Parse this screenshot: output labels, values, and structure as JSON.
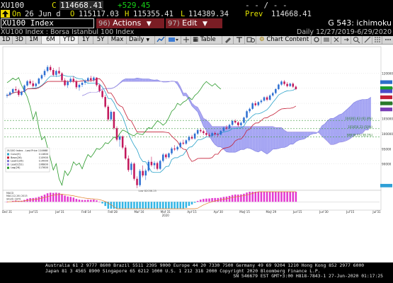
{
  "quote": {
    "ticker": "XU100",
    "last_prefix": "C",
    "last": "114668.41",
    "change": "+529.45",
    "change_color": "#17d117",
    "dashes": "- - / - -",
    "on_label": "On",
    "date": "26 Jun d",
    "open_prefix": "O",
    "open": "115117.03",
    "high_prefix": "H",
    "high": "115355.41",
    "low_prefix": "L",
    "low": "114389.34",
    "prev_label": "Prev",
    "prev": "114668.41"
  },
  "function_bar": {
    "ticker_field": "XU100 Index",
    "actions": {
      "num": "96)",
      "label": "Actions"
    },
    "edit": {
      "num": "97)",
      "label": "Edit"
    },
    "title": "G 543: ichimoku"
  },
  "subtitle": {
    "left": "XU100 Index : Borsa Istanbul 100 Index",
    "period_label": "Daily",
    "range": "12/27/2019-6/29/2020"
  },
  "toolbar": {
    "buttons": [
      "1D",
      "3D",
      "1M",
      "6M",
      "YTD",
      "1Y",
      "5Y",
      "Max",
      "Daily"
    ],
    "active": "6M",
    "table": "Table",
    "chart_content": "Chart Content"
  },
  "chart_data": {
    "type": "line",
    "date_labels": [
      "Dec 31",
      "Jan 15",
      "Jan 31",
      "Feb 14",
      "Feb 28",
      "Mar 16",
      "Mar 31",
      "Apr 15",
      "Apr 30",
      "May 15",
      "May 29",
      "Jun 15",
      "Jun 30",
      "Jul 15",
      "Jul 31"
    ],
    "year_label": "2020",
    "y_tick_labels": [
      "120000",
      "115000",
      "110000",
      "105000",
      "100000",
      "95000",
      "90000"
    ],
    "price_ylim": [
      82000,
      128000
    ],
    "macd_ylim": [
      -1500,
      2200
    ],
    "price_tags": [
      {
        "value": 117000,
        "color": "#2c6ec9"
      },
      {
        "value": 115000,
        "color": "#1a9d2a"
      },
      {
        "value": 114000,
        "color": "#4b4bc8"
      },
      {
        "value": 112000,
        "color": "#c41f36"
      },
      {
        "value": 110000,
        "color": "#2a7a2a"
      },
      {
        "value": 108000,
        "color": "#7a3fb5"
      }
    ],
    "fib_labels": [
      "104361.63 (61.8%)",
      "101650.23 (50%)",
      "98938.53 (38.2%)"
    ],
    "legend": {
      "header": "XU100 Index - Last Price 114668",
      "items": [
        "Conv(9)",
        "Base(26)",
        "Lead1(26)",
        "Lead2(52)",
        "Lag(26)"
      ],
      "values": [
        "111800",
        "110900",
        "114000",
        "106800",
        "117600"
      ],
      "colors": [
        "#2aa2c9",
        "#c41f36",
        "#7a7ad0",
        "#9c8be0",
        "#2a9a2a"
      ]
    },
    "macd_legend": [
      "MACD",
      "MAC(12,26) 2015",
      "SIG(9) 1879"
    ],
    "min_label": "Low 82036.25",
    "candles": [
      [
        112500,
        113300,
        111800,
        112800
      ],
      [
        112800,
        114000,
        112400,
        113600
      ],
      [
        113600,
        115000,
        113300,
        114700
      ],
      [
        114700,
        115600,
        113900,
        114300
      ],
      [
        114300,
        114800,
        112200,
        112800
      ],
      [
        112800,
        114100,
        112400,
        113800
      ],
      [
        113800,
        116200,
        113500,
        115900
      ],
      [
        115900,
        117700,
        115500,
        117300
      ],
      [
        117300,
        117900,
        116100,
        116600
      ],
      [
        116600,
        117500,
        115300,
        115700
      ],
      [
        115700,
        116900,
        115200,
        116500
      ],
      [
        116500,
        118500,
        116200,
        118200
      ],
      [
        118200,
        119700,
        117700,
        119300
      ],
      [
        119300,
        121300,
        118700,
        120700
      ],
      [
        120700,
        122600,
        120200,
        122000
      ],
      [
        122000,
        122700,
        120500,
        121000
      ],
      [
        121000,
        121700,
        118900,
        119400
      ],
      [
        119400,
        121100,
        118700,
        120700
      ],
      [
        120700,
        122000,
        119500,
        119900
      ],
      [
        119900,
        120300,
        117100,
        117600
      ],
      [
        117600,
        118300,
        115600,
        116000
      ],
      [
        116000,
        117600,
        115100,
        117100
      ],
      [
        117100,
        118600,
        116700,
        118100
      ],
      [
        118100,
        119000,
        116700,
        117200
      ],
      [
        117200,
        117800,
        114700,
        115300
      ],
      [
        115300,
        116600,
        114200,
        116100
      ],
      [
        116100,
        117300,
        115400,
        116800
      ],
      [
        116800,
        117900,
        116100,
        117500
      ],
      [
        117500,
        118700,
        116900,
        118300
      ],
      [
        118300,
        119100,
        117100,
        117700
      ],
      [
        117700,
        118900,
        117100,
        118500
      ],
      [
        118500,
        118600,
        115500,
        116000
      ],
      [
        116000,
        116400,
        113600,
        114100
      ],
      [
        114100,
        114600,
        111600,
        112100
      ],
      [
        112100,
        112800,
        108400,
        108900
      ],
      [
        108900,
        109500,
        104100,
        104700
      ],
      [
        104700,
        107800,
        104100,
        107200
      ],
      [
        107200,
        107400,
        101300,
        101800
      ],
      [
        101800,
        102400,
        97500,
        98000
      ],
      [
        98000,
        99600,
        95700,
        99100
      ],
      [
        99100,
        99400,
        94800,
        95400
      ],
      [
        95400,
        96200,
        91300,
        91800
      ],
      [
        91800,
        92800,
        87400,
        88000
      ],
      [
        88000,
        90700,
        86400,
        90100
      ],
      [
        90100,
        90500,
        84500,
        85100
      ],
      [
        85100,
        85900,
        82000,
        83000
      ],
      [
        83000,
        88300,
        82500,
        87700
      ],
      [
        87700,
        89500,
        85600,
        86200
      ],
      [
        86200,
        88400,
        84700,
        87800
      ],
      [
        87800,
        91300,
        87300,
        90700
      ],
      [
        90700,
        92400,
        89100,
        89600
      ],
      [
        89600,
        91000,
        88300,
        90300
      ],
      [
        90300,
        90800,
        87900,
        88400
      ],
      [
        88400,
        91400,
        88000,
        91000
      ],
      [
        91000,
        93600,
        90500,
        93100
      ],
      [
        93100,
        93500,
        91600,
        92200
      ],
      [
        92200,
        93800,
        91800,
        93500
      ],
      [
        93500,
        95600,
        93000,
        95100
      ],
      [
        95100,
        96200,
        94300,
        94800
      ],
      [
        94800,
        96000,
        94300,
        95600
      ],
      [
        95600,
        97400,
        95100,
        97000
      ],
      [
        97000,
        98000,
        96200,
        96700
      ],
      [
        96700,
        98200,
        96300,
        97800
      ],
      [
        97800,
        99400,
        97300,
        98900
      ],
      [
        98900,
        99600,
        98000,
        98400
      ],
      [
        98400,
        100400,
        98000,
        100000
      ],
      [
        100000,
        101600,
        99500,
        101200
      ],
      [
        101200,
        101700,
        100300,
        100800
      ],
      [
        100800,
        101300,
        99600,
        100200
      ],
      [
        100200,
        100800,
        99100,
        99600
      ],
      [
        99600,
        100300,
        98700,
        99300
      ],
      [
        99300,
        100600,
        98800,
        100200
      ],
      [
        100200,
        100700,
        99300,
        99800
      ],
      [
        99800,
        100300,
        99000,
        99700
      ],
      [
        99700,
        101200,
        99400,
        100900
      ],
      [
        100900,
        102400,
        100500,
        102000
      ],
      [
        102000,
        102800,
        101300,
        101700
      ],
      [
        101700,
        103300,
        101400,
        102900
      ],
      [
        102900,
        104600,
        102600,
        104200
      ],
      [
        104200,
        104700,
        103300,
        103700
      ],
      [
        103700,
        104100,
        102300,
        102800
      ],
      [
        102800,
        104000,
        102400,
        103600
      ],
      [
        103600,
        105600,
        103300,
        105300
      ],
      [
        105300,
        107800,
        105000,
        107400
      ],
      [
        107400,
        108600,
        106800,
        108200
      ],
      [
        108200,
        110400,
        107900,
        110000
      ],
      [
        110000,
        110800,
        109000,
        109400
      ],
      [
        109400,
        110700,
        109000,
        110400
      ],
      [
        110400,
        111400,
        109900,
        110900
      ],
      [
        110900,
        112300,
        110600,
        112000
      ],
      [
        112000,
        112500,
        110700,
        111200
      ],
      [
        111200,
        113000,
        110900,
        112600
      ],
      [
        112600,
        113800,
        112200,
        113400
      ],
      [
        113400,
        115000,
        113000,
        114700
      ],
      [
        114700,
        116500,
        114400,
        116200
      ],
      [
        116200,
        117600,
        115800,
        117200
      ],
      [
        117200,
        117700,
        115900,
        116400
      ],
      [
        116400,
        117000,
        115300,
        115700
      ],
      [
        115700,
        116800,
        115400,
        116500
      ],
      [
        116500,
        116900,
        115100,
        115500
      ],
      [
        115500,
        115900,
        114400,
        114700
      ]
    ]
  },
  "footer": {
    "line1": "Australia 61 2 9777 8600 Brazil 5511 2395 9000 Europe 44 20 7330 7500 Germany 49 69 9204 1210 Hong Kong 852 2977 6000",
    "line2": "Japan 81 3 4565 8900        Singapore 65 6212 1000        U.S. 1 212 318 2000             Copyright 2020 Bloomberg Finance L.P.",
    "line3": "SN 546679 EST  GMT+3:00 H818-7843-1 27-Jun-2020 01:17:25"
  }
}
